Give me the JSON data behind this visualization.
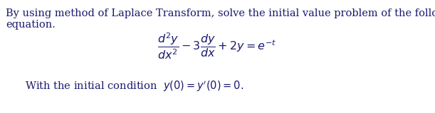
{
  "background_color": "#ffffff",
  "text_color": "#1a1a6e",
  "line1": "By using method of Laplace Transform, solve the initial value problem of the following",
  "line2": "equation.",
  "equation": "$\\dfrac{d^2y}{dx^2} - 3\\dfrac{dy}{dx} + 2y = e^{-t}$",
  "initial_condition": "With the initial condition  $y(0) = y'(0) = 0.$",
  "font_size_text": 10.5,
  "font_size_eq": 11.5
}
